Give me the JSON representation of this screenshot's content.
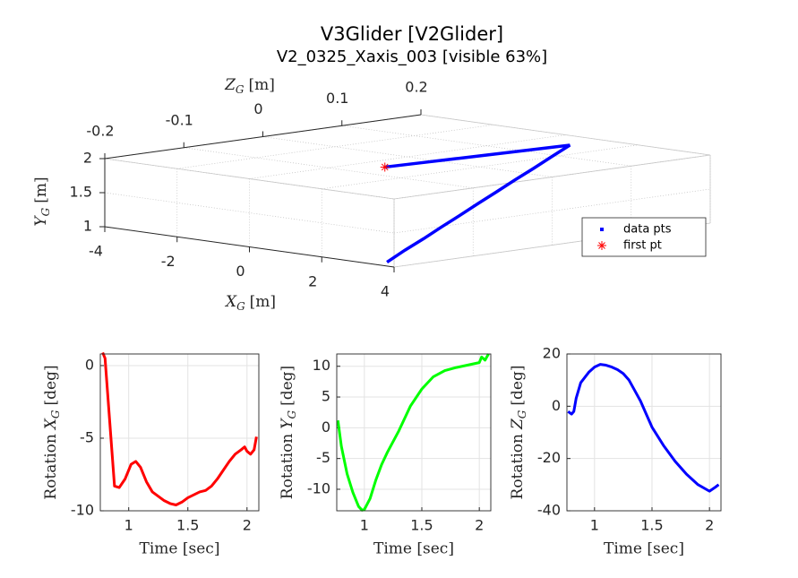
{
  "chart_data": [
    {
      "type": "scatter3d",
      "title": "V3Glider [V2Glider]",
      "subtitle": "V2_0325_Xaxis_003 [visible 63%]",
      "xlabel": [
        "X",
        "G",
        "[m]"
      ],
      "ylabel": [
        "Y",
        "G",
        "[m]"
      ],
      "zlabel": [
        "Z",
        "G",
        "[m]"
      ],
      "xlim": [
        -4,
        4
      ],
      "ylim": [
        1,
        2
      ],
      "zlim": [
        -0.2,
        0.2
      ],
      "xticks": [
        -4,
        -2,
        0,
        2,
        4
      ],
      "yticks": [
        1,
        1.5,
        2
      ],
      "zticks": [
        -0.2,
        -0.1,
        0,
        0.1,
        0.2
      ],
      "grid": true,
      "legend": "right",
      "series": [
        {
          "name": "data pts",
          "color": "#0000ff",
          "x": [
            0.03,
            0.24,
            0.45,
            0.66,
            0.87,
            1.08,
            1.35,
            1.62,
            1.88,
            2.15,
            2.42,
            2.69,
            2.96,
            3.22,
            3.49,
            3.76
          ],
          "y": [
            1.9,
            1.92,
            1.94,
            1.96,
            1.98,
            2.0,
            1.91,
            1.81,
            1.72,
            1.62,
            1.53,
            1.43,
            1.34,
            1.24,
            1.15,
            1.05
          ],
          "z": [
            -0.03,
            0.007,
            0.044,
            0.082,
            0.119,
            0.156,
            0.121,
            0.085,
            0.05,
            0.014,
            -0.021,
            -0.057,
            -0.092,
            -0.127,
            -0.163,
            -0.198
          ]
        },
        {
          "name": "first pt",
          "color": "#ff0000",
          "x": [
            0.03
          ],
          "y": [
            1.9
          ],
          "z": [
            -0.03
          ]
        }
      ]
    },
    {
      "type": "line",
      "xlabel": "Time [sec]",
      "ylabel": [
        "Rotation",
        "X",
        "G",
        "[deg]"
      ],
      "xlim": [
        0.76,
        2.1
      ],
      "ylim": [
        -10,
        0.8
      ],
      "xticks": [
        1,
        1.5,
        2
      ],
      "yticks": [
        -10,
        -5,
        0
      ],
      "grid": true,
      "x": [
        0.78,
        0.8,
        0.85,
        0.88,
        0.92,
        0.97,
        1.02,
        1.06,
        1.1,
        1.15,
        1.2,
        1.25,
        1.3,
        1.35,
        1.4,
        1.45,
        1.5,
        1.55,
        1.6,
        1.65,
        1.7,
        1.75,
        1.8,
        1.85,
        1.9,
        1.95,
        1.98,
        2.0,
        2.03,
        2.06,
        2.08
      ],
      "series": [
        {
          "color": "#ff0000",
          "values": [
            0.9,
            0.5,
            -5,
            -8.3,
            -8.4,
            -7.8,
            -6.8,
            -6.6,
            -7.0,
            -8.0,
            -8.7,
            -9.0,
            -9.3,
            -9.5,
            -9.6,
            -9.4,
            -9.1,
            -8.9,
            -8.7,
            -8.6,
            -8.3,
            -7.8,
            -7.2,
            -6.6,
            -6.1,
            -5.8,
            -5.6,
            -5.9,
            -6.1,
            -5.8,
            -4.9
          ]
        }
      ]
    },
    {
      "type": "line",
      "xlabel": "Time [sec]",
      "ylabel": [
        "Rotation",
        "Y",
        "G",
        "[deg]"
      ],
      "xlim": [
        0.76,
        2.1
      ],
      "ylim": [
        -13.5,
        12
      ],
      "xticks": [
        1,
        1.5,
        2
      ],
      "yticks": [
        -10,
        -5,
        0,
        5,
        10
      ],
      "grid": true,
      "x": [
        0.77,
        0.8,
        0.85,
        0.9,
        0.95,
        0.98,
        1.0,
        1.05,
        1.1,
        1.15,
        1.2,
        1.3,
        1.4,
        1.5,
        1.6,
        1.7,
        1.8,
        1.9,
        1.95,
        2.0,
        2.02,
        2.05,
        2.08
      ],
      "series": [
        {
          "color": "#00ff00",
          "values": [
            1.2,
            -3,
            -7.5,
            -10.5,
            -12.8,
            -13.4,
            -13.3,
            -11.5,
            -8.5,
            -6,
            -4,
            -0.5,
            3.5,
            6.3,
            8.3,
            9.3,
            9.8,
            10.2,
            10.4,
            10.6,
            11.5,
            11,
            12
          ]
        }
      ]
    },
    {
      "type": "line",
      "xlabel": "Time [sec]",
      "ylabel": [
        "Rotation",
        "Z",
        "G",
        "[deg]"
      ],
      "xlim": [
        0.76,
        2.1
      ],
      "ylim": [
        -40,
        20
      ],
      "xticks": [
        1,
        1.5,
        2
      ],
      "yticks": [
        -40,
        -20,
        0,
        20
      ],
      "grid": true,
      "x": [
        0.77,
        0.8,
        0.82,
        0.84,
        0.88,
        0.95,
        1.0,
        1.05,
        1.1,
        1.15,
        1.2,
        1.25,
        1.3,
        1.35,
        1.4,
        1.45,
        1.5,
        1.6,
        1.7,
        1.8,
        1.9,
        2.0,
        2.05,
        2.08
      ],
      "series": [
        {
          "color": "#0000ff",
          "values": [
            -2,
            -3,
            -2,
            3,
            9,
            13,
            15,
            16,
            15.7,
            15,
            14,
            12.5,
            10,
            6,
            2,
            -3,
            -8,
            -15,
            -21,
            -26,
            -30,
            -32.5,
            -31,
            -30
          ]
        }
      ]
    }
  ]
}
